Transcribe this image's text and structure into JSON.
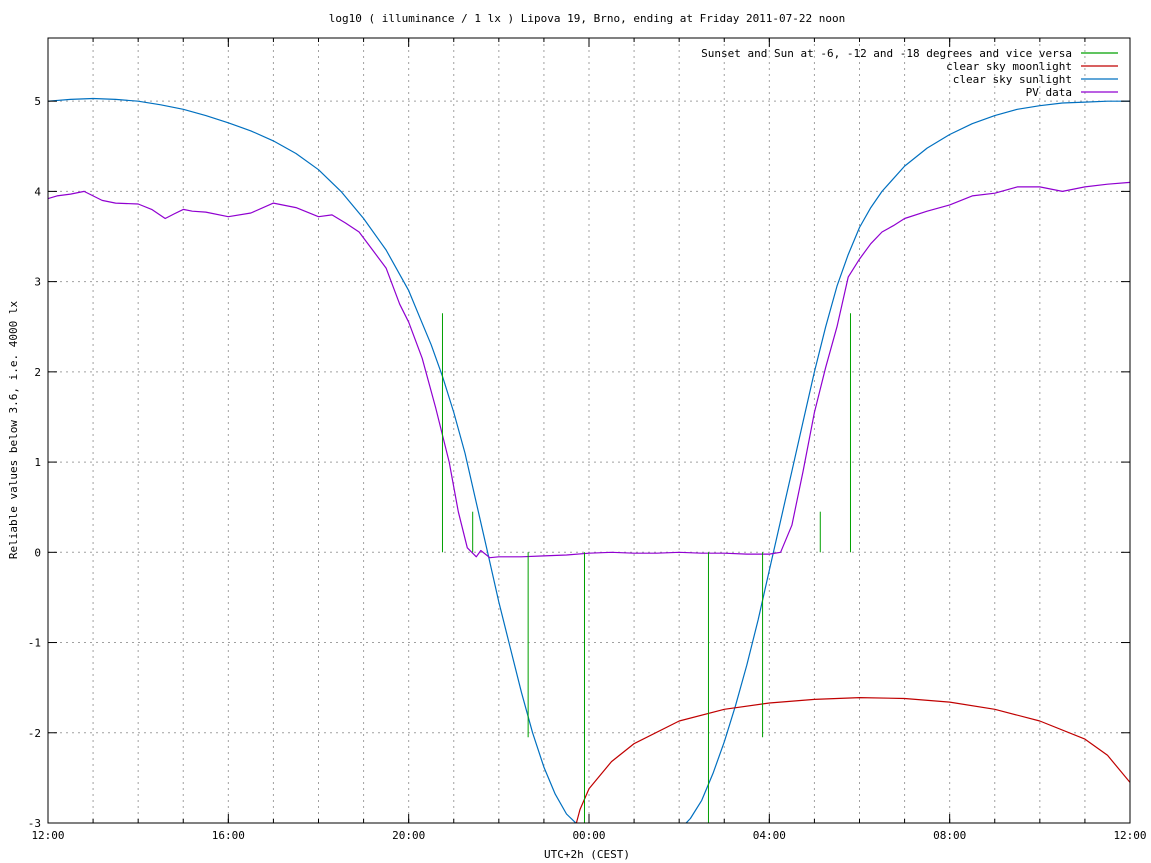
{
  "chart_data": {
    "type": "line",
    "title": "log10 ( illuminance / 1 lx ) Lipova 19, Brno, ending at Friday 2011-07-22 noon",
    "xlabel": "UTC+2h (CEST)",
    "ylabel": "Reliable values below 3.6, i.e. 4000 lx",
    "x_unit": "hours since 12:00 (local)",
    "xlim": [
      0,
      24
    ],
    "ylim": [
      -3,
      5.7
    ],
    "x_ticks": [
      {
        "value": 0,
        "label": "12:00"
      },
      {
        "value": 4,
        "label": "16:00"
      },
      {
        "value": 8,
        "label": "20:00"
      },
      {
        "value": 12,
        "label": "00:00"
      },
      {
        "value": 16,
        "label": "04:00"
      },
      {
        "value": 20,
        "label": "08:00"
      },
      {
        "value": 24,
        "label": "12:00"
      }
    ],
    "y_ticks": [
      {
        "value": -3,
        "label": "-3"
      },
      {
        "value": -2,
        "label": "-2"
      },
      {
        "value": -1,
        "label": "-1"
      },
      {
        "value": 0,
        "label": "0"
      },
      {
        "value": 1,
        "label": "1"
      },
      {
        "value": 2,
        "label": "2"
      },
      {
        "value": 3,
        "label": "3"
      },
      {
        "value": 4,
        "label": "4"
      },
      {
        "value": 5,
        "label": "5"
      }
    ],
    "grid": true,
    "legend_position": "top-right",
    "series": [
      {
        "name": "Sunset and Sun at -6, -12 and -18 degrees and vice versa",
        "color": "#00a000",
        "style": "impulses",
        "x": [
          8.75,
          9.42,
          10.65,
          11.9,
          14.65,
          15.85,
          17.13,
          17.8
        ],
        "y": [
          2.65,
          0.45,
          -2.05,
          -3.0,
          -3.0,
          -2.05,
          0.45,
          2.65
        ]
      },
      {
        "name": "clear sky moonlight",
        "color": "#c00000",
        "x": [
          11.72,
          11.8,
          12.0,
          12.5,
          13.0,
          14.0,
          15.0,
          16.0,
          17.0,
          18.0,
          19.0,
          20.0,
          21.0,
          22.0,
          23.0,
          23.5,
          24.0
        ],
        "y": [
          -3.0,
          -2.85,
          -2.62,
          -2.32,
          -2.12,
          -1.87,
          -1.74,
          -1.67,
          -1.63,
          -1.61,
          -1.62,
          -1.66,
          -1.74,
          -1.87,
          -2.07,
          -2.25,
          -2.55
        ]
      },
      {
        "name": "clear sky sunlight",
        "color": "#0070c0",
        "x": [
          0,
          0.5,
          1.0,
          1.5,
          2.0,
          2.5,
          3.0,
          3.5,
          4.0,
          4.5,
          5.0,
          5.5,
          6.0,
          6.5,
          7.0,
          7.5,
          8.0,
          8.25,
          8.5,
          8.75,
          9.0,
          9.25,
          9.5,
          9.75,
          10.0,
          10.25,
          10.5,
          10.75,
          11.0,
          11.25,
          11.5,
          11.75,
          12.0,
          12.25,
          12.5,
          12.75,
          13.0,
          13.25,
          13.5,
          13.75,
          14.0,
          14.25,
          14.5,
          14.75,
          15.0,
          15.25,
          15.5,
          15.75,
          16.0,
          16.25,
          16.5,
          16.75,
          17.0,
          17.25,
          17.5,
          17.75,
          18.0,
          18.25,
          18.5,
          19.0,
          19.5,
          20.0,
          20.5,
          21.0,
          21.5,
          22.0,
          22.5,
          23.0,
          23.5,
          24.0
        ],
        "y": [
          5.0,
          5.02,
          5.03,
          5.02,
          5.0,
          4.96,
          4.91,
          4.84,
          4.76,
          4.67,
          4.56,
          4.42,
          4.24,
          4.0,
          3.7,
          3.35,
          2.9,
          2.6,
          2.3,
          1.95,
          1.55,
          1.1,
          0.55,
          0.0,
          -0.55,
          -1.05,
          -1.55,
          -2.0,
          -2.38,
          -2.68,
          -2.9,
          -3.02,
          -3.08,
          -3.1,
          -3.1,
          -3.1,
          -3.1,
          -3.1,
          -3.1,
          -3.1,
          -3.08,
          -2.95,
          -2.75,
          -2.45,
          -2.1,
          -1.7,
          -1.25,
          -0.75,
          -0.2,
          0.35,
          0.9,
          1.45,
          2.0,
          2.5,
          2.95,
          3.3,
          3.6,
          3.82,
          4.0,
          4.28,
          4.48,
          4.63,
          4.75,
          4.84,
          4.91,
          4.95,
          4.98,
          4.99,
          5.0,
          5.0
        ]
      },
      {
        "name": "PV data",
        "color": "#9000d0",
        "x": [
          0,
          0.2,
          0.5,
          0.8,
          1.0,
          1.2,
          1.5,
          2.0,
          2.3,
          2.6,
          2.8,
          3.0,
          3.2,
          3.5,
          4.0,
          4.5,
          5.0,
          5.5,
          6.0,
          6.3,
          6.6,
          6.9,
          7.2,
          7.5,
          7.8,
          8.0,
          8.3,
          8.6,
          8.9,
          9.1,
          9.3,
          9.5,
          9.6,
          9.8,
          10.0,
          10.5,
          11.0,
          11.5,
          12.0,
          12.5,
          13.0,
          13.5,
          14.0,
          14.5,
          15.0,
          15.5,
          16.0,
          16.25,
          16.5,
          16.75,
          17.0,
          17.25,
          17.5,
          17.75,
          18.0,
          18.25,
          18.5,
          18.75,
          19.0,
          19.5,
          20.0,
          20.5,
          21.0,
          21.5,
          22.0,
          22.5,
          23.0,
          23.5,
          24.0
        ],
        "y": [
          3.92,
          3.95,
          3.97,
          4.0,
          3.95,
          3.9,
          3.87,
          3.86,
          3.8,
          3.7,
          3.75,
          3.8,
          3.78,
          3.77,
          3.72,
          3.76,
          3.87,
          3.82,
          3.72,
          3.74,
          3.65,
          3.55,
          3.35,
          3.15,
          2.75,
          2.55,
          2.15,
          1.6,
          1.0,
          0.45,
          0.05,
          -0.05,
          0.02,
          -0.06,
          -0.05,
          -0.05,
          -0.04,
          -0.03,
          -0.01,
          0.0,
          -0.01,
          -0.01,
          0.0,
          -0.01,
          -0.01,
          -0.02,
          -0.02,
          0.0,
          0.3,
          0.9,
          1.55,
          2.05,
          2.5,
          3.05,
          3.25,
          3.42,
          3.55,
          3.62,
          3.7,
          3.78,
          3.85,
          3.95,
          3.98,
          4.05,
          4.05,
          4.0,
          4.05,
          4.08,
          4.1
        ]
      }
    ]
  }
}
